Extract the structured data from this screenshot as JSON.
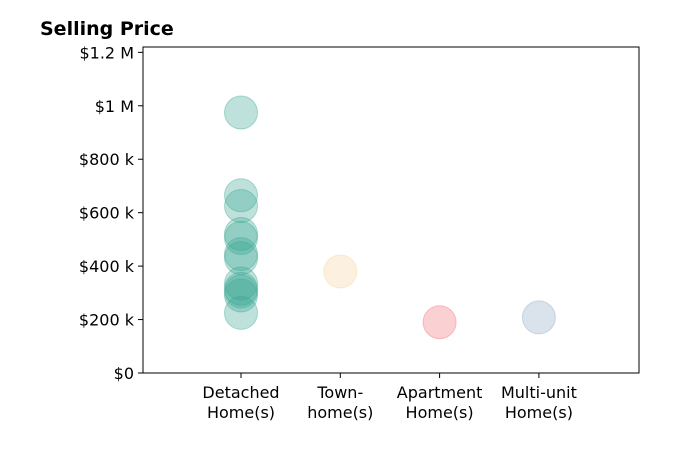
{
  "chart_data": {
    "type": "scatter",
    "title": "Selling Price",
    "xlabel": "",
    "ylabel": "",
    "categories": [
      [
        "Detached",
        "Home(s)"
      ],
      [
        "Town-",
        "home(s)"
      ],
      [
        "Apartment",
        "Home(s)"
      ],
      [
        "Multi-unit",
        "Home(s)"
      ]
    ],
    "ylim": [
      0,
      1220000
    ],
    "yticks": [
      0,
      200000,
      400000,
      600000,
      800000,
      1000000,
      1200000
    ],
    "ytick_labels": [
      "$0",
      "$200 k",
      "$400 k",
      "$600 k",
      "$800 k",
      "$1 M",
      "$1.2 M"
    ],
    "grid": false,
    "series": [
      {
        "category_index": 0,
        "color": "#3aa893",
        "values": [
          975000,
          665000,
          625000,
          520000,
          505000,
          445000,
          430000,
          335000,
          315000,
          305000,
          290000,
          225000
        ]
      },
      {
        "category_index": 1,
        "color": "#f2d49b",
        "values": [
          380000
        ]
      },
      {
        "category_index": 2,
        "color": "#ef6f77",
        "values": [
          190000
        ]
      },
      {
        "category_index": 3,
        "color": "#8fabc6",
        "values": [
          208000
        ]
      }
    ]
  }
}
